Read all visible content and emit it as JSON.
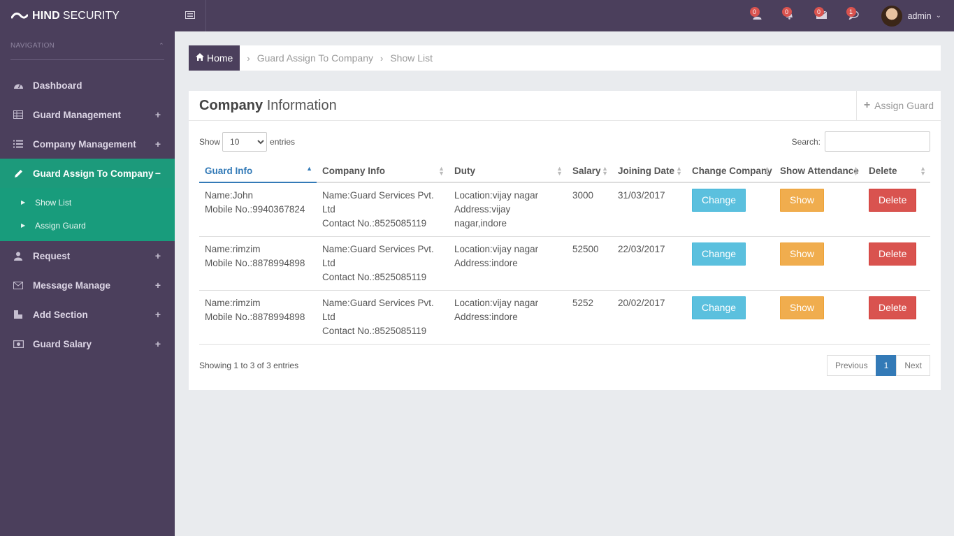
{
  "brand": {
    "bold": "HIND",
    "light": "SECURITY"
  },
  "sidebar": {
    "nav_header": "NAVIGATION",
    "items": [
      {
        "label": "Dashboard",
        "icon": "dashboard-icon",
        "toggle": ""
      },
      {
        "label": "Guard Management",
        "icon": "table-icon",
        "toggle": "+"
      },
      {
        "label": "Company Management",
        "icon": "list-icon",
        "toggle": "+"
      },
      {
        "label": "Guard Assign To Company",
        "icon": "pencil-icon",
        "toggle": "−",
        "active": true
      },
      {
        "label": "Request",
        "icon": "user-icon",
        "toggle": "+"
      },
      {
        "label": "Message Manage",
        "icon": "envelope-icon",
        "toggle": "+"
      },
      {
        "label": "Add Section",
        "icon": "section-icon",
        "toggle": "+"
      },
      {
        "label": "Guard Salary",
        "icon": "money-icon",
        "toggle": "+"
      }
    ],
    "submenu": [
      {
        "label": "Show List"
      },
      {
        "label": "Assign Guard"
      }
    ]
  },
  "topbar": {
    "notifications": [
      {
        "icon": "user-icon",
        "count": "0"
      },
      {
        "icon": "bell-icon",
        "count": "0"
      },
      {
        "icon": "envelope-icon",
        "count": "0"
      },
      {
        "icon": "comment-icon",
        "count": "1"
      }
    ],
    "user_name": "admin"
  },
  "breadcrumb": {
    "home": "Home",
    "section": "Guard Assign To Company",
    "page": "Show List"
  },
  "panel": {
    "title_bold": "Company",
    "title_light": "Information",
    "assign_label": "Assign Guard"
  },
  "table_controls": {
    "show_label": "Show",
    "page_size": "10",
    "entries_label": "entries",
    "search_label": "Search:"
  },
  "table": {
    "headers": [
      "Guard Info",
      "Company Info",
      "Duty",
      "Salary",
      "Joining Date",
      "Change Company",
      "Show Attendance",
      "Delete"
    ],
    "rows": [
      {
        "guard": [
          "Name:John",
          "Mobile No.:9940367824"
        ],
        "company": [
          "Name:Guard Services Pvt. Ltd",
          "Contact No.:8525085119"
        ],
        "duty": [
          "Location:vijay nagar",
          "Address:vijay nagar,indore"
        ],
        "salary": "3000",
        "date": "31/03/2017"
      },
      {
        "guard": [
          "Name:rimzim",
          "Mobile No.:8878994898"
        ],
        "company": [
          "Name:Guard Services Pvt. Ltd",
          "Contact No.:8525085119"
        ],
        "duty": [
          "Location:vijay nagar",
          "Address:indore"
        ],
        "salary": "52500",
        "date": "22/03/2017"
      },
      {
        "guard": [
          "Name:rimzim",
          "Mobile No.:8878994898"
        ],
        "company": [
          "Name:Guard Services Pvt. Ltd",
          "Contact No.:8525085119"
        ],
        "duty": [
          "Location:vijay nagar",
          "Address:indore"
        ],
        "salary": "5252",
        "date": "20/02/2017"
      }
    ],
    "buttons": {
      "change": "Change",
      "show": "Show",
      "delete": "Delete"
    }
  },
  "footer": {
    "info": "Showing 1 to 3 of 3 entries",
    "prev": "Previous",
    "current_page": "1",
    "next": "Next"
  },
  "colors": {
    "sidebar_bg": "#4b3f5c",
    "active_green": "#1c9a7b",
    "primary_blue": "#337ab7",
    "info": "#5bc0de",
    "warning": "#f0ad4e",
    "danger": "#d9534f"
  }
}
